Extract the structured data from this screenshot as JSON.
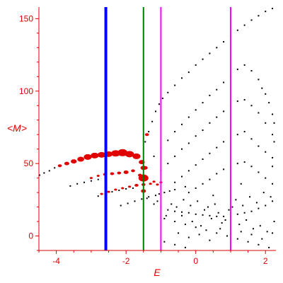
{
  "chart_data": {
    "type": "scatter",
    "xlabel": "E",
    "ylabel": "<M>",
    "xlim": [
      -4.5,
      2.3
    ],
    "ylim": [
      -10,
      158
    ],
    "xticks": [
      -4,
      -2,
      0,
      2
    ],
    "yticks": [
      0,
      50,
      100,
      150
    ],
    "grid": false,
    "colors": {
      "axis": "#e00000",
      "black_points": "#000000",
      "red_points": "#e00000",
      "blue_line": "#0000ff",
      "green_line": "#008000",
      "magenta_line": "#ff00ff"
    },
    "vertical_lines": [
      {
        "x": -2.58,
        "color": "#0000ff",
        "width": 4
      },
      {
        "x": -1.5,
        "color": "#008000",
        "width": 2
      },
      {
        "x": -1.0,
        "color": "#ff00ff",
        "width": 2
      },
      {
        "x": 1.0,
        "color": "#ff00ff",
        "width": 2
      }
    ],
    "series": [
      {
        "points": [
          [
            -4.48,
            42
          ],
          [
            -4.35,
            43.5
          ],
          [
            -4.2,
            45
          ],
          [
            -4.05,
            47
          ],
          [
            -3.9,
            48.5
          ],
          [
            -3.6,
            34.5
          ],
          [
            -3.4,
            36
          ],
          [
            -3.2,
            37
          ],
          [
            -3.0,
            38
          ],
          [
            -2.8,
            39
          ],
          [
            -2.6,
            40
          ],
          [
            -2.8,
            27.5
          ],
          [
            -2.6,
            29
          ],
          [
            -2.4,
            30.5
          ],
          [
            -2.2,
            31.5
          ],
          [
            -2.0,
            32.5
          ],
          [
            -1.8,
            33
          ],
          [
            -2.15,
            21
          ],
          [
            -1.95,
            22.5
          ],
          [
            -1.75,
            24
          ],
          [
            -1.55,
            25.5
          ],
          [
            -1.35,
            27
          ],
          [
            -1.15,
            28
          ],
          [
            -1.05,
            29
          ],
          [
            -0.9,
            30
          ],
          [
            -0.75,
            31
          ],
          [
            -0.6,
            32
          ],
          [
            -1.45,
            65
          ],
          [
            -1.35,
            72
          ],
          [
            -1.25,
            79
          ],
          [
            -1.15,
            86
          ],
          [
            -1.05,
            91
          ],
          [
            -0.95,
            95
          ],
          [
            -0.8,
            99
          ],
          [
            -0.6,
            104
          ],
          [
            -0.4,
            109
          ],
          [
            -0.2,
            113
          ],
          [
            0.0,
            118
          ],
          [
            0.2,
            122
          ],
          [
            0.4,
            126
          ],
          [
            0.6,
            130
          ],
          [
            0.8,
            134
          ],
          [
            1.0,
            138
          ],
          [
            1.2,
            142
          ],
          [
            1.4,
            145.5
          ],
          [
            1.6,
            149
          ],
          [
            1.8,
            152
          ],
          [
            2.0,
            155
          ],
          [
            2.2,
            157
          ],
          [
            -1.2,
            55
          ],
          [
            -1.0,
            61
          ],
          [
            -0.8,
            66
          ],
          [
            -0.6,
            72
          ],
          [
            -0.4,
            77
          ],
          [
            -0.2,
            82
          ],
          [
            0.0,
            87
          ],
          [
            0.2,
            92
          ],
          [
            0.4,
            97
          ],
          [
            0.6,
            101
          ],
          [
            0.8,
            106
          ],
          [
            1.0,
            110
          ],
          [
            1.2,
            115
          ],
          [
            1.4,
            118
          ],
          [
            1.6,
            114
          ],
          [
            1.8,
            108
          ],
          [
            1.9,
            102
          ],
          [
            2.0,
            98
          ],
          [
            2.1,
            92
          ],
          [
            2.2,
            84
          ],
          [
            2.25,
            78
          ],
          [
            -1.0,
            45
          ],
          [
            -0.8,
            50
          ],
          [
            -0.6,
            55
          ],
          [
            -0.4,
            60
          ],
          [
            -0.2,
            64
          ],
          [
            0.0,
            69
          ],
          [
            0.2,
            73
          ],
          [
            0.4,
            78
          ],
          [
            0.6,
            82
          ],
          [
            0.8,
            86
          ],
          [
            1.0,
            90
          ],
          [
            1.2,
            93
          ],
          [
            1.4,
            94
          ],
          [
            1.6,
            90
          ],
          [
            1.8,
            85
          ],
          [
            2.0,
            78
          ],
          [
            2.2,
            70
          ],
          [
            2.25,
            65
          ],
          [
            -0.6,
            37
          ],
          [
            -0.4,
            41
          ],
          [
            -0.2,
            45
          ],
          [
            0.0,
            49
          ],
          [
            0.2,
            53
          ],
          [
            0.4,
            57
          ],
          [
            0.6,
            61
          ],
          [
            0.8,
            65
          ],
          [
            1.0,
            68
          ],
          [
            1.2,
            70
          ],
          [
            1.4,
            72
          ],
          [
            1.6,
            67
          ],
          [
            1.8,
            62
          ],
          [
            2.0,
            58
          ],
          [
            2.2,
            54
          ],
          [
            -0.2,
            30
          ],
          [
            0.0,
            33
          ],
          [
            0.2,
            36
          ],
          [
            0.4,
            39
          ],
          [
            0.6,
            43
          ],
          [
            0.8,
            46
          ],
          [
            1.0,
            48
          ],
          [
            1.2,
            50
          ],
          [
            1.4,
            51
          ],
          [
            1.6,
            48
          ],
          [
            1.8,
            44
          ],
          [
            2.0,
            40
          ],
          [
            2.2,
            36
          ],
          [
            -1.4,
            26
          ],
          [
            -1.2,
            22
          ],
          [
            -1.0,
            20
          ],
          [
            -0.8,
            18
          ],
          [
            -0.6,
            17
          ],
          [
            -0.4,
            16.5
          ],
          [
            -0.2,
            16
          ],
          [
            0.0,
            15
          ],
          [
            0.2,
            14.5
          ],
          [
            0.4,
            14
          ],
          [
            0.6,
            13.5
          ],
          [
            0.8,
            13.5
          ],
          [
            1.0,
            14
          ],
          [
            1.2,
            15
          ],
          [
            1.4,
            16
          ],
          [
            1.6,
            17
          ],
          [
            1.8,
            19
          ],
          [
            2.0,
            21
          ],
          [
            2.2,
            24
          ],
          [
            -0.9,
            12
          ],
          [
            -0.6,
            10
          ],
          [
            -0.3,
            8
          ],
          [
            0.0,
            6
          ],
          [
            0.3,
            4
          ],
          [
            0.6,
            2
          ],
          [
            0.9,
            0
          ],
          [
            1.2,
            -2
          ],
          [
            1.5,
            -4
          ],
          [
            1.8,
            -6
          ],
          [
            2.1,
            -8
          ],
          [
            -0.9,
            -4
          ],
          [
            -0.6,
            -6
          ],
          [
            -0.3,
            -8
          ],
          [
            -1.1,
            24
          ],
          [
            -0.85,
            14
          ],
          [
            -0.7,
            22
          ],
          [
            -0.55,
            20
          ],
          [
            -0.35,
            25
          ],
          [
            -0.15,
            21
          ],
          [
            0.05,
            24
          ],
          [
            0.25,
            18
          ],
          [
            0.45,
            12
          ],
          [
            0.65,
            16
          ],
          [
            0.85,
            11
          ],
          [
            1.05,
            20
          ],
          [
            1.25,
            8
          ],
          [
            1.45,
            11
          ],
          [
            1.65,
            5
          ],
          [
            1.85,
            7
          ],
          [
            2.05,
            3
          ],
          [
            2.25,
            10
          ],
          [
            -0.5,
            2
          ],
          [
            -0.2,
            -1
          ],
          [
            0.1,
            1
          ],
          [
            0.4,
            -3
          ],
          [
            0.7,
            5
          ],
          [
            1.0,
            -5
          ],
          [
            1.3,
            3
          ],
          [
            1.6,
            1
          ],
          [
            1.9,
            -2
          ],
          [
            2.2,
            2
          ],
          [
            -0.4,
            14
          ],
          [
            -0.1,
            10
          ],
          [
            0.15,
            7
          ],
          [
            0.35,
            20
          ],
          [
            0.55,
            22
          ],
          [
            0.75,
            9
          ],
          [
            0.95,
            18
          ],
          [
            1.15,
            25
          ],
          [
            1.35,
            21
          ],
          [
            1.55,
            27
          ],
          [
            1.75,
            23
          ],
          [
            1.95,
            30
          ],
          [
            2.15,
            27
          ],
          [
            2.2,
            48
          ],
          [
            1.3,
            36
          ],
          [
            0.5,
            28
          ],
          [
            -0.3,
            34
          ]
        ]
      },
      {
        "points": [
          [
            -3.9,
            48.5,
            2
          ],
          [
            -3.7,
            50,
            2.5
          ],
          [
            -3.5,
            51.5,
            3
          ],
          [
            -3.3,
            53,
            3.5
          ],
          [
            -3.1,
            54.5,
            4
          ],
          [
            -2.9,
            55.5,
            4
          ],
          [
            -2.7,
            56,
            4
          ],
          [
            -2.5,
            56.5,
            4
          ],
          [
            -2.3,
            57,
            4.5
          ],
          [
            -2.1,
            57.5,
            5
          ],
          [
            -1.9,
            56.5,
            4.5
          ],
          [
            -1.7,
            55,
            4
          ],
          [
            -1.55,
            51,
            3
          ],
          [
            -1.45,
            47,
            2.5
          ],
          [
            -1.4,
            70,
            2
          ],
          [
            -3.0,
            40,
            1.5
          ],
          [
            -2.8,
            41.5,
            1.5
          ],
          [
            -2.6,
            42.5,
            2
          ],
          [
            -2.4,
            43,
            2
          ],
          [
            -2.2,
            43.5,
            2
          ],
          [
            -2.0,
            44,
            2.5
          ],
          [
            -1.8,
            45,
            2
          ],
          [
            -1.6,
            42,
            2
          ],
          [
            -1.5,
            40,
            5
          ],
          [
            -2.7,
            29,
            1.5
          ],
          [
            -2.5,
            30.5,
            1.5
          ],
          [
            -2.3,
            32,
            1.5
          ],
          [
            -2.1,
            33,
            1.5
          ],
          [
            -1.9,
            34,
            1.5
          ],
          [
            -1.7,
            35,
            2
          ],
          [
            -1.5,
            35.5,
            2
          ],
          [
            -1.3,
            36,
            1.5
          ],
          [
            -1.1,
            35.5,
            1.5
          ],
          [
            -1.5,
            31,
            2.5
          ],
          [
            -1.5,
            47,
            3
          ],
          [
            -1.0,
            37,
            1.5
          ],
          [
            -1.2,
            37.5,
            1.5
          ]
        ]
      }
    ]
  }
}
